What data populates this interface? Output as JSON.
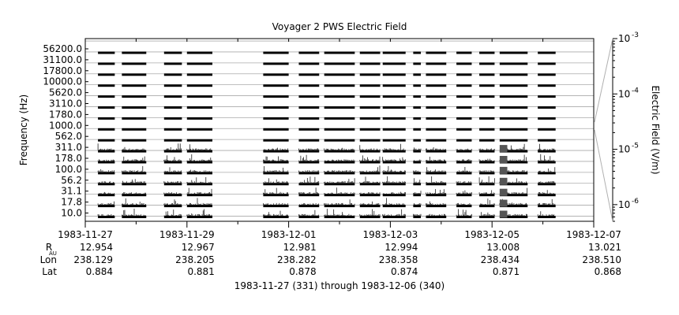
{
  "chart_data": {
    "type": "spectrogram",
    "title": "Voyager 2 PWS Electric Field",
    "ylabel": "Frequency (Hz)",
    "colorbar_label": "Electric Field (V/m)",
    "colorbar_ticks": [
      {
        "mantissa": "10",
        "exp": "-3",
        "value": 0.001
      },
      {
        "mantissa": "10",
        "exp": "-4",
        "value": 0.0001
      },
      {
        "mantissa": "10",
        "exp": "-5",
        "value": 1e-05
      },
      {
        "mantissa": "10",
        "exp": "-6",
        "value": 1e-06
      }
    ],
    "colorbar_scale": "log",
    "colorbar_range": [
      5e-07,
      0.001
    ],
    "y_tick_labels": [
      "56200.0",
      "31100.0",
      "17800.0",
      "10000.0",
      "5620.0",
      "3110.0",
      "1780.0",
      "1000.0",
      "562.0",
      "311.0",
      "178.0",
      "100.0",
      "56.2",
      "31.1",
      "17.8",
      "10.0"
    ],
    "channel_count": 16,
    "x_start_day": "1983-11-27",
    "x_end_day": "1983-12-07",
    "x_tick_labels": [
      "1983-11-27",
      "1983-11-29",
      "1983-12-01",
      "1983-12-03",
      "1983-12-05",
      "1983-12-07"
    ],
    "ephemeris": {
      "row_labels": {
        "r": "R",
        "r_sub": "AU",
        "lon": "Lon",
        "lat": "Lat"
      },
      "r_au": [
        "12.954",
        "12.967",
        "12.981",
        "12.994",
        "13.008",
        "13.021"
      ],
      "lon": [
        "238.129",
        "238.205",
        "238.282",
        "238.358",
        "238.434",
        "238.510"
      ],
      "lat": [
        "0.884",
        "0.881",
        "0.878",
        "0.874",
        "0.871",
        "0.868"
      ]
    },
    "x_caption": "1983-11-27 (331) through 1983-12-06 (340)",
    "segments_days": [
      [
        0.25,
        0.58
      ],
      [
        0.72,
        1.2
      ],
      [
        1.55,
        1.9
      ],
      [
        2.0,
        2.5
      ],
      [
        3.5,
        4.0
      ],
      [
        4.2,
        4.6
      ],
      [
        4.7,
        5.3
      ],
      [
        5.4,
        5.8
      ],
      [
        5.85,
        6.3
      ],
      [
        6.45,
        6.6
      ],
      [
        6.7,
        7.1
      ],
      [
        7.3,
        7.6
      ],
      [
        7.75,
        8.05
      ],
      [
        8.15,
        8.7
      ],
      [
        8.9,
        9.25
      ]
    ],
    "grid": "horizontal lines between channels",
    "colors": {
      "data": "#000000",
      "gridline": "#aaaaaa",
      "axis": "#000000",
      "guide": "#b0b0b0"
    }
  }
}
